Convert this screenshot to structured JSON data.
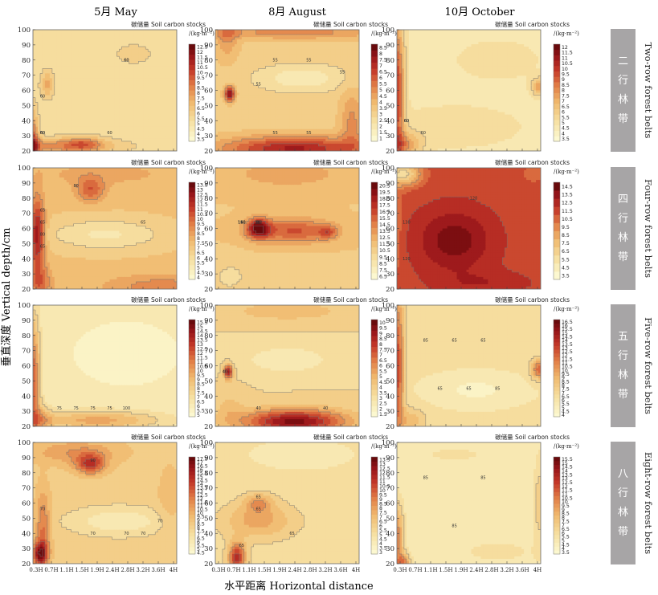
{
  "figure": {
    "y_axis_label": "垂直深度 Vertical depth/cm",
    "x_axis_label": "水平距离 Horizontal distance",
    "legend_title": "碳储量 Soil carbon stocks",
    "legend_unit": "/(kg·m⁻²)"
  },
  "chart_data": {
    "type": "heatmap",
    "rendering": "filled contour",
    "columns": [
      "5月 May",
      "8月 August",
      "10月 October"
    ],
    "rows": [
      {
        "cn": [
          "二",
          "行",
          "林",
          "带"
        ],
        "en": "Two-row forest belts"
      },
      {
        "cn": [
          "四",
          "行",
          "林",
          "带"
        ],
        "en": "Four-row forest belts"
      },
      {
        "cn": [
          "五",
          "行",
          "林",
          "带"
        ],
        "en": "Five-row forest belts"
      },
      {
        "cn": [
          "八",
          "行",
          "林",
          "带"
        ],
        "en": "Eight-row forest belts"
      }
    ],
    "x_ticks": [
      "0.3H",
      "0.7H",
      "1.1H",
      "1.5H",
      "1.9H",
      "2.4H",
      "2.8H",
      "3.2H",
      "3.6H",
      "4H"
    ],
    "y_ticks": [
      20,
      30,
      40,
      50,
      60,
      70,
      80,
      90,
      100
    ],
    "ylim": [
      20,
      100
    ],
    "colors": {
      "low": "#fbf7d0",
      "mid": "#efb469",
      "high": "#6e0a0c",
      "contour": "#707070",
      "label_bg": "#a7a5a6",
      "label_text": "#ffffff"
    },
    "panels": [
      {
        "row": 0,
        "col": 0,
        "legend_ticks": [
          3.5,
          4,
          4.5,
          5,
          5.5,
          6,
          6.5,
          7,
          7.5,
          8,
          8.5,
          9,
          9.5,
          10,
          10.5,
          11,
          11.5,
          12,
          12.5
        ],
        "contour_labels": [
          "60",
          "60",
          "60",
          "60",
          "60",
          "60"
        ]
      },
      {
        "row": 0,
        "col": 1,
        "legend_ticks": [
          1,
          1.5,
          2,
          2.5,
          3,
          3.5,
          4,
          4.5,
          5,
          5.5,
          6,
          6.5,
          7,
          7.5,
          8,
          8.5
        ],
        "contour_labels": [
          "55",
          "55",
          "55",
          "55",
          "55",
          "55"
        ]
      },
      {
        "row": 0,
        "col": 2,
        "legend_ticks": [
          3.5,
          4,
          4.5,
          5,
          5.5,
          6,
          6.5,
          7,
          7.5,
          8,
          8.5,
          9,
          9.5,
          10,
          10.5,
          11,
          11.5,
          12
        ],
        "contour_labels": [
          "60",
          "60",
          "60"
        ]
      },
      {
        "row": 1,
        "col": 0,
        "legend_ticks": [
          4,
          4.5,
          5,
          5.5,
          6,
          6.5,
          7,
          7.5,
          8,
          8.5,
          9,
          9.5,
          10,
          10.5,
          11,
          11.5,
          12,
          12.5,
          13,
          13.5
        ],
        "contour_labels": [
          "80",
          "65",
          "65",
          "65",
          "80",
          "65"
        ]
      },
      {
        "row": 1,
        "col": 1,
        "legend_ticks": [
          6.5,
          7.5,
          8.5,
          9.5,
          10.5,
          11.5,
          12.5,
          13.5,
          14.5,
          15.5,
          16.5,
          17.5,
          18.5,
          19.5,
          20.5
        ],
        "contour_labels": [
          "110",
          "160",
          "160",
          "110",
          "110",
          "110",
          "80",
          "80",
          "80"
        ]
      },
      {
        "row": 1,
        "col": 2,
        "legend_ticks": [
          3.5,
          4.5,
          5.5,
          6.5,
          7.5,
          8.5,
          9.5,
          10.5,
          11.5,
          12.5,
          13.5,
          14.5
        ],
        "contour_labels": [
          "120",
          "130",
          "120"
        ]
      },
      {
        "row": 2,
        "col": 0,
        "legend_ticks": [
          5,
          5.5,
          6,
          6.5,
          7,
          7.5,
          8,
          8.5,
          9,
          9.5,
          10,
          10.5,
          11,
          11.5,
          12,
          12.5,
          13,
          13.5,
          14,
          14.5,
          15,
          15.5
        ],
        "contour_labels": [
          "75",
          "75",
          "75",
          "75",
          "100"
        ]
      },
      {
        "row": 2,
        "col": 1,
        "legend_ticks": [
          1.5,
          2,
          2.5,
          3,
          3.5,
          4,
          4.5,
          5,
          5.5,
          6,
          6.5,
          7,
          7.5,
          8,
          8.5,
          9,
          9.5,
          10
        ],
        "contour_labels": [
          "40",
          "40",
          "40",
          "40"
        ]
      },
      {
        "row": 2,
        "col": 2,
        "legend_ticks": [
          4,
          4.5,
          5,
          5.5,
          6,
          6.5,
          7,
          7.5,
          8,
          8.5,
          9,
          9.5,
          10,
          10.5,
          11,
          11.5,
          12,
          12.5,
          13,
          13.5,
          14,
          14.5,
          15,
          15.5,
          16,
          16.5
        ],
        "contour_labels": [
          "85",
          "65",
          "65",
          "65",
          "65",
          "85"
        ]
      },
      {
        "row": 3,
        "col": 0,
        "legend_ticks": [
          4.5,
          5,
          5.5,
          6,
          6.5,
          7,
          7.5,
          8,
          8.5,
          9,
          9.5,
          10,
          10.5,
          11,
          11.5,
          12,
          12.5,
          13,
          13.5,
          14,
          14.5,
          15,
          15.5,
          16,
          16.5,
          17,
          17.5
        ],
        "contour_labels": [
          "90",
          "70",
          "70",
          "70",
          "70",
          "70"
        ]
      },
      {
        "row": 3,
        "col": 1,
        "legend_ticks": [
          3,
          3.5,
          4,
          4.5,
          5,
          5.5,
          6,
          6.5,
          7,
          7.5,
          8,
          8.5,
          9,
          9.5,
          10,
          10.5,
          11,
          11.5,
          12,
          12.5,
          13,
          13.5
        ],
        "contour_labels": [
          "65",
          "65",
          "65",
          "65"
        ]
      },
      {
        "row": 3,
        "col": 2,
        "legend_ticks": [
          3.5,
          4,
          4.5,
          5,
          5.5,
          6,
          6.5,
          7,
          7.5,
          8,
          8.5,
          9,
          9.5,
          10,
          10.5,
          11,
          11.5,
          12,
          12.5,
          13,
          13.5,
          14,
          14.5,
          15,
          15.5
        ],
        "contour_labels": [
          "85",
          "85",
          "85"
        ]
      }
    ]
  }
}
